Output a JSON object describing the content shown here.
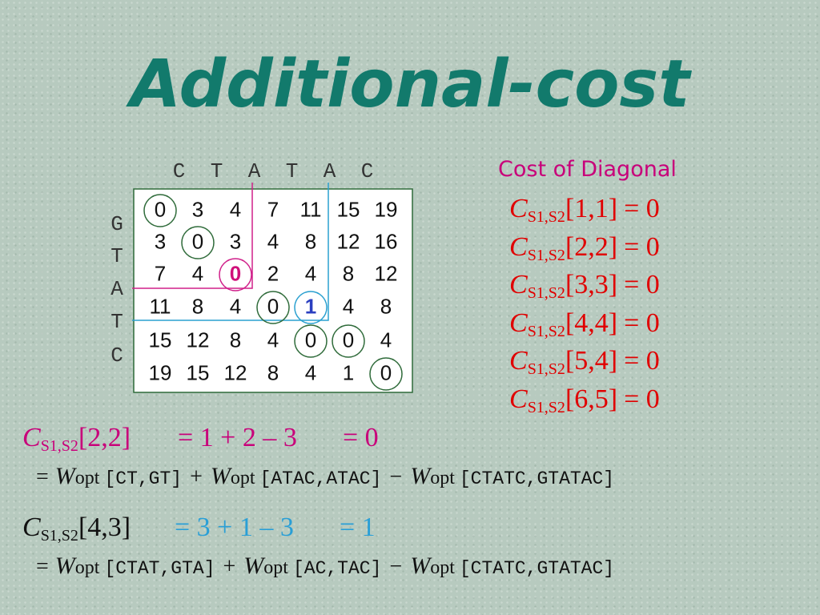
{
  "title": "Additional-cost",
  "matrix": {
    "columns": [
      "C",
      "T",
      "A",
      "T",
      "A",
      "C"
    ],
    "rows": [
      "G",
      "T",
      "A",
      "T",
      "C"
    ],
    "cells": [
      [
        0,
        3,
        4,
        7,
        11,
        15,
        19
      ],
      [
        3,
        0,
        3,
        4,
        8,
        12,
        16
      ],
      [
        7,
        4,
        0,
        2,
        4,
        8,
        12
      ],
      [
        11,
        8,
        4,
        0,
        1,
        4,
        8
      ],
      [
        15,
        12,
        8,
        4,
        0,
        0,
        4
      ],
      [
        19,
        15,
        12,
        8,
        4,
        1,
        0
      ]
    ]
  },
  "diagonal": {
    "heading": "Cost of Diagonal",
    "entries": [
      {
        "name": "C",
        "subscript": "S1,S2",
        "index": "[1,1]",
        "result": "= 0"
      },
      {
        "name": "C",
        "subscript": "S1,S2",
        "index": "[2,2]",
        "result": "= 0"
      },
      {
        "name": "C",
        "subscript": "S1,S2",
        "index": "[3,3]",
        "result": "= 0"
      },
      {
        "name": "C",
        "subscript": "S1,S2",
        "index": "[4,4]",
        "result": "= 0"
      },
      {
        "name": "C",
        "subscript": "S1,S2",
        "index": "[5,4]",
        "result": "= 0"
      },
      {
        "name": "C",
        "subscript": "S1,S2",
        "index": "[6,5]",
        "result": "= 0"
      }
    ]
  },
  "examples": [
    {
      "name": "C",
      "subscript": "S1,S2",
      "index": "[2,2]",
      "sum": "= 1 + 2 – 3",
      "result": "= 0",
      "expansion": [
        {
          "op": "=",
          "name": "W",
          "subscript": "opt",
          "args": "[CT,GT]"
        },
        {
          "op": "+",
          "name": "W",
          "subscript": "opt",
          "args": "[ATAC,ATAC]"
        },
        {
          "op": "−",
          "name": "W",
          "subscript": "opt",
          "args": "[CTATC,GTATAC]"
        }
      ]
    },
    {
      "name": "C",
      "subscript": "S1,S2",
      "index": "[4,3]",
      "sum": "= 3 + 1 – 3",
      "result": "= 1",
      "expansion": [
        {
          "op": "=",
          "name": "W",
          "subscript": "opt",
          "args": "[CTAT,GTA]"
        },
        {
          "op": "+",
          "name": "W",
          "subscript": "opt",
          "args": "[AC,TAC]"
        },
        {
          "op": "−",
          "name": "W",
          "subscript": "opt",
          "args": "[CTATC,GTATAC]"
        }
      ]
    }
  ]
}
